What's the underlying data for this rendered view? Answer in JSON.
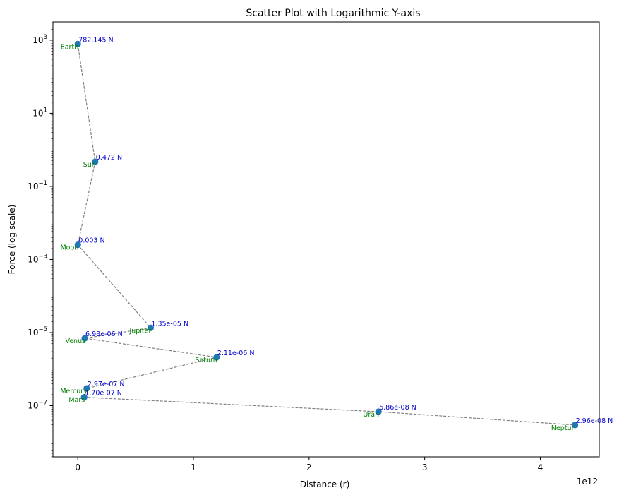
{
  "chart_data": {
    "type": "scatter",
    "title": "Scatter Plot with Logarithmic Y-axis",
    "xlabel": "Distance (r)",
    "ylabel": "Force (log scale)",
    "x_offset_text": "1e12",
    "yscale": "log",
    "xlim": [
      -215000000000.0,
      4510000000000.0
    ],
    "ylim_log10": [
      -8.4,
      3.5
    ],
    "x_ticks": [
      {
        "value": 0,
        "label": "0"
      },
      {
        "value": 1000000000000.0,
        "label": "1"
      },
      {
        "value": 2000000000000.0,
        "label": "2"
      },
      {
        "value": 3000000000000.0,
        "label": "3"
      },
      {
        "value": 4000000000000.0,
        "label": "4"
      }
    ],
    "y_ticks": [
      {
        "exp": 3,
        "base": "10",
        "sup": "3"
      },
      {
        "exp": 1,
        "base": "10",
        "sup": "1"
      },
      {
        "exp": -1,
        "base": "10",
        "sup": "−1"
      },
      {
        "exp": -3,
        "base": "10",
        "sup": "−3"
      },
      {
        "exp": -5,
        "base": "10",
        "sup": "−5"
      },
      {
        "exp": -7,
        "base": "10",
        "sup": "−7"
      }
    ],
    "grid": false,
    "line_style": "dashed",
    "colors": {
      "marker": "#1f77b4",
      "line": "#808080",
      "value_label": "#0000cc",
      "name_label": "#008000"
    },
    "points": [
      {
        "name": "Earth",
        "x": 0.0,
        "y": 782.145,
        "label": "782.145 N"
      },
      {
        "name": "Sun",
        "x": 150000000000.0,
        "y": 0.472,
        "label": "0.472 N"
      },
      {
        "name": "Moon",
        "x": 400000000.0,
        "y": 0.00253,
        "label": "0.003 N"
      },
      {
        "name": "Jupiter",
        "x": 630000000000.0,
        "y": 1.35e-05,
        "label": "1.35e-05 N"
      },
      {
        "name": "Venus",
        "x": 60000000000.0,
        "y": 6.98e-06,
        "label": "6.98e-06 N"
      },
      {
        "name": "Saturn",
        "x": 1200000000000.0,
        "y": 2.11e-06,
        "label": "2.11e-06 N"
      },
      {
        "name": "Mercury",
        "x": 77000000000.0,
        "y": 2.97e-07,
        "label": "2.97e-07 N"
      },
      {
        "name": "Mars",
        "x": 55000000000.0,
        "y": 1.7e-07,
        "label": "1.70e-07 N"
      },
      {
        "name": "Uranus",
        "x": 2600000000000.0,
        "y": 6.86e-08,
        "label": "6.86e-08 N"
      },
      {
        "name": "Neptune",
        "x": 4300000000000.0,
        "y": 2.96e-08,
        "label": "2.96e-08 N"
      }
    ],
    "label_text": {
      "Uranus": "Uran",
      "Neptune": "Neptun"
    }
  }
}
